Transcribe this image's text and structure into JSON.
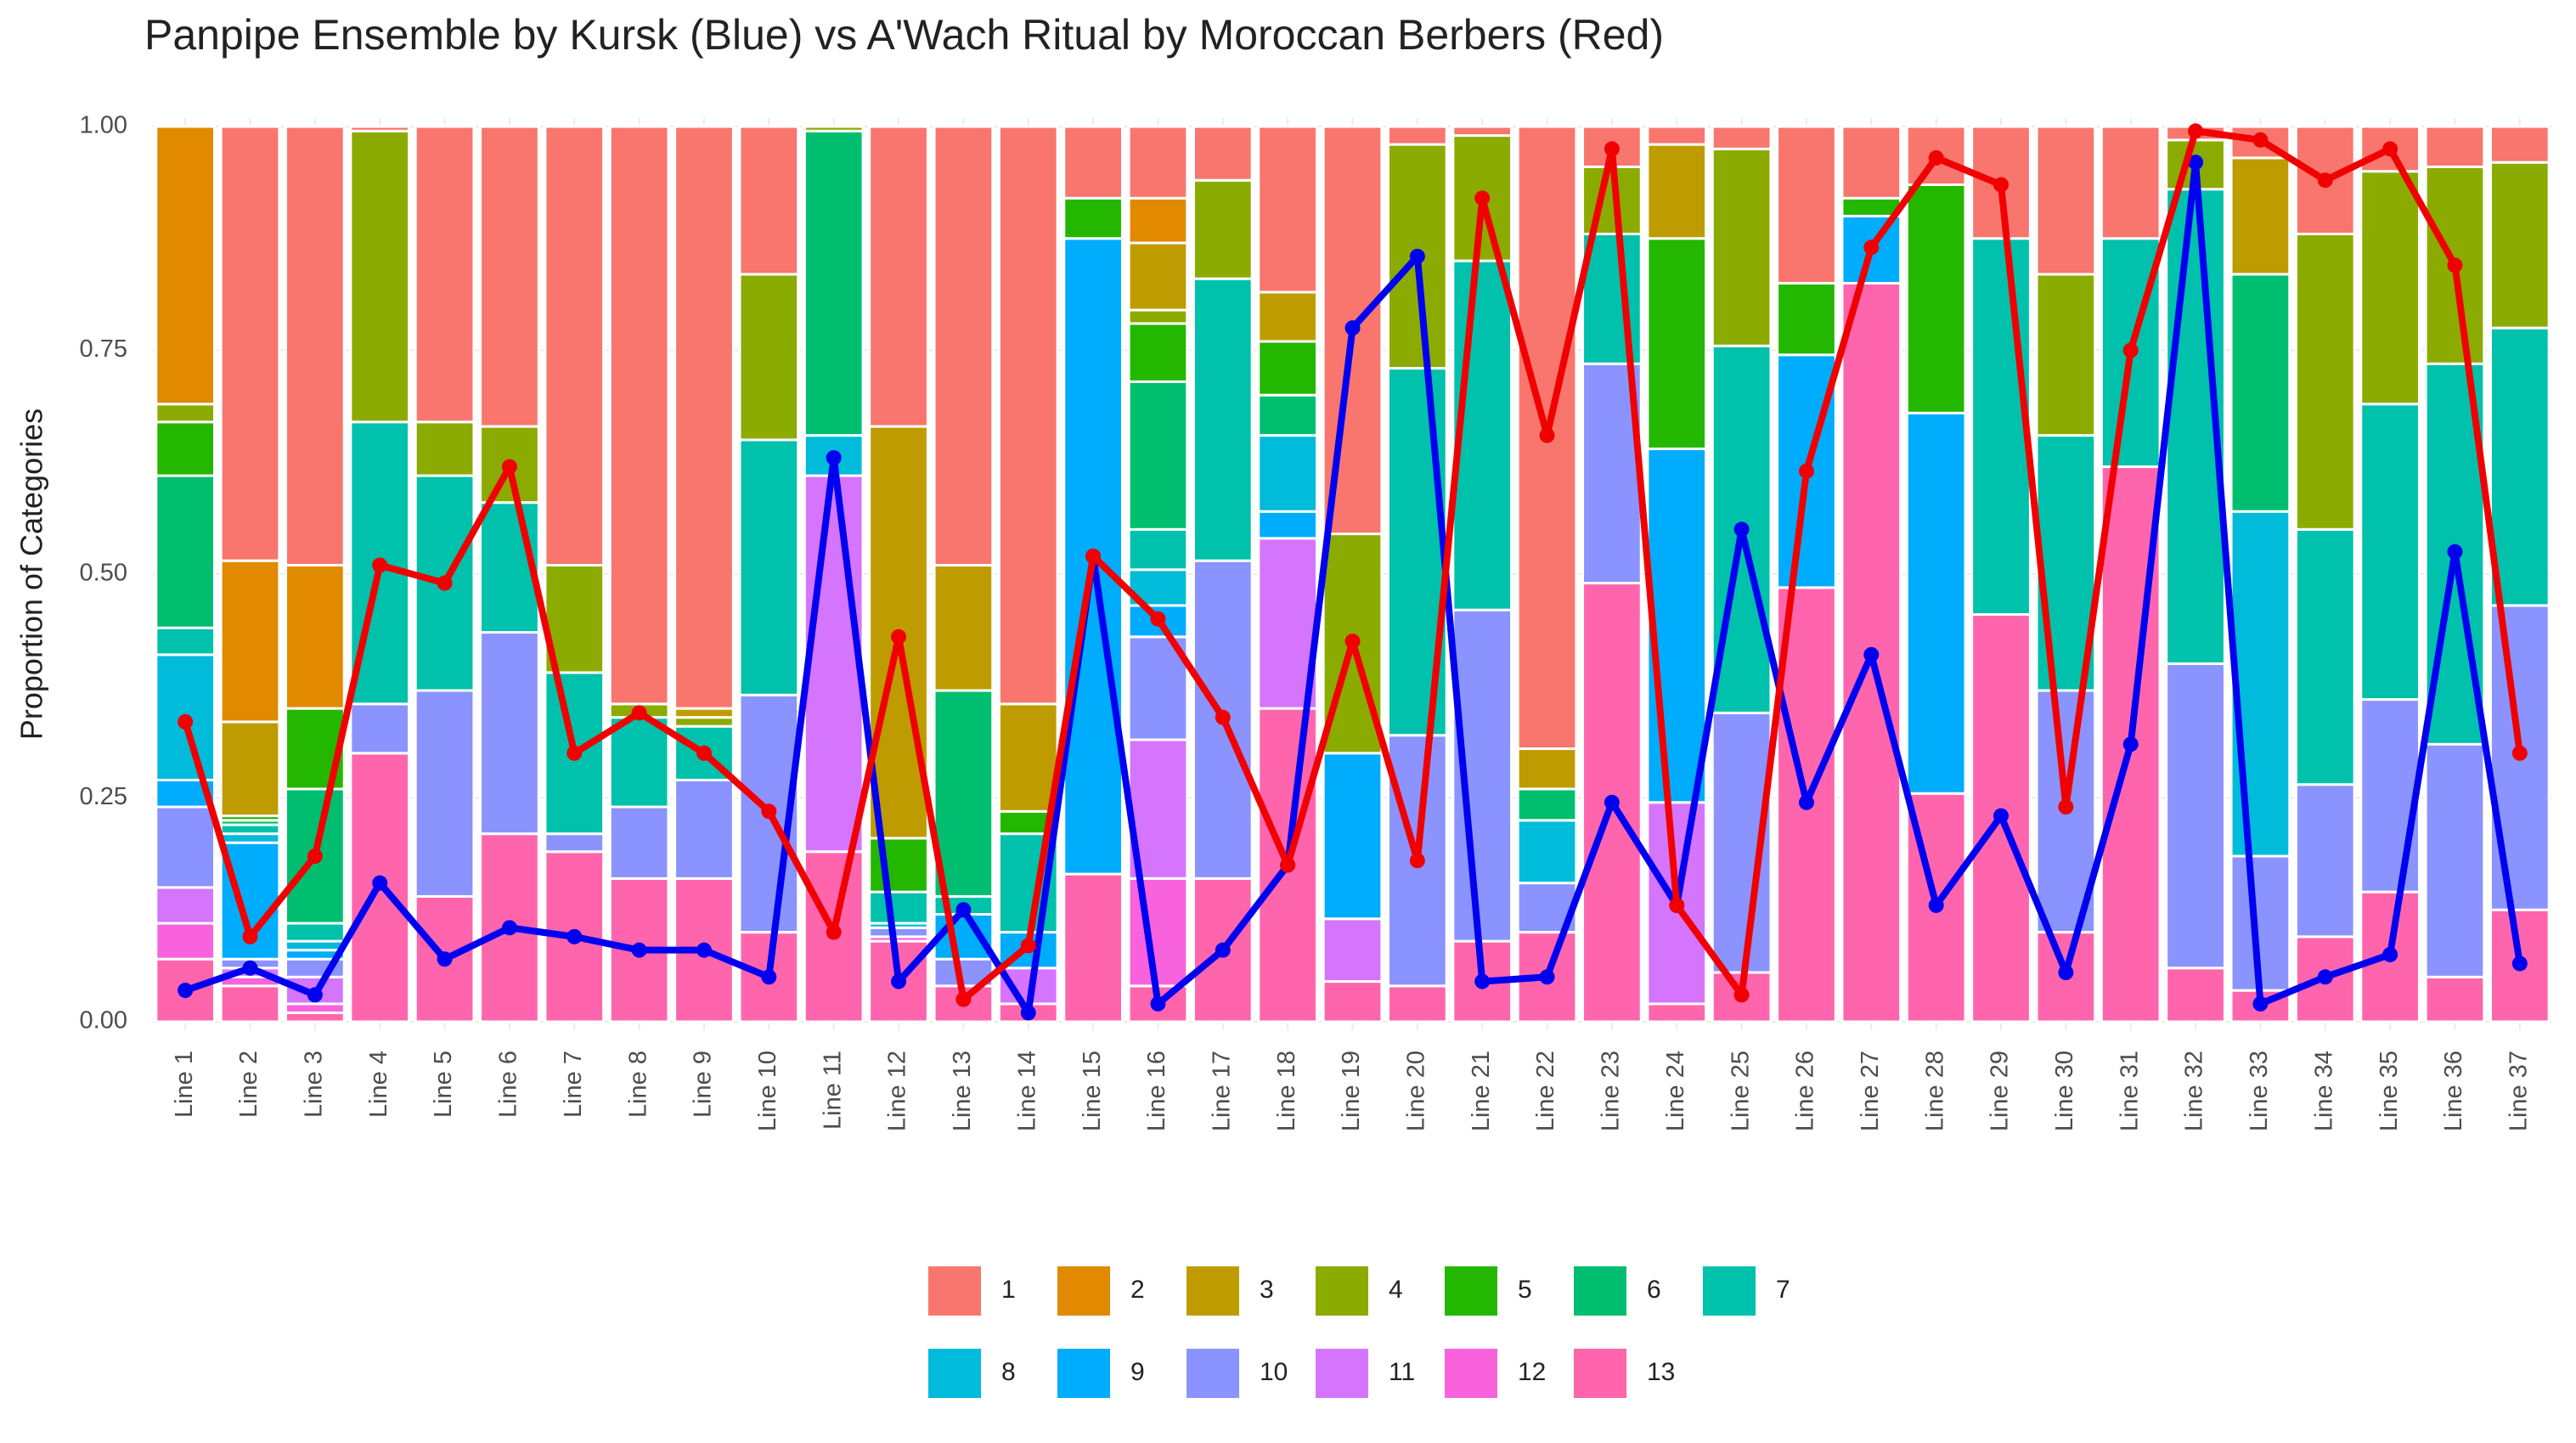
{
  "chart_data": {
    "type": "bar",
    "stacked": true,
    "title": "Panpipe Ensemble by Kursk (Blue) vs A'Wach Ritual by Moroccan Berbers (Red)",
    "y_label": "Proportion of Categories",
    "categories": [
      "Line 1",
      "Line 2",
      "Line 3",
      "Line 4",
      "Line 5",
      "Line 6",
      "Line 7",
      "Line 8",
      "Line 9",
      "Line 10",
      "Line 11",
      "Line 12",
      "Line 13",
      "Line 14",
      "Line 15",
      "Line 16",
      "Line 17",
      "Line 18",
      "Line 19",
      "Line 20",
      "Line 21",
      "Line 22",
      "Line 23",
      "Line 24",
      "Line 25",
      "Line 26",
      "Line 27",
      "Line 28",
      "Line 29",
      "Line 30",
      "Line 31",
      "Line 32",
      "Line 33",
      "Line 34",
      "Line 35",
      "Line 36",
      "Line 37"
    ],
    "series": [
      {
        "name": "1",
        "color": "#F8766D",
        "values": [
          0,
          0.485,
          0.49,
          0.005,
          0.33,
          0.335,
          0.49,
          0.645,
          0.65,
          0.165,
          0,
          0.335,
          0.49,
          0.645,
          0.08,
          0.08,
          0.06,
          0.185,
          0.455,
          0.02,
          0.01,
          0.695,
          0.045,
          0.02,
          0.025,
          0.175,
          0.08,
          0.065,
          0.125,
          0.165,
          0.125,
          0.015,
          0.035,
          0.12,
          0.05,
          0.045,
          0.04
        ]
      },
      {
        "name": "2",
        "color": "#E18A00",
        "values": [
          0.31,
          0.18,
          0.16,
          0,
          0,
          0,
          0,
          0,
          0,
          0,
          0,
          0,
          0,
          0,
          0,
          0.05,
          0,
          0,
          0,
          0,
          0,
          0,
          0,
          0,
          0,
          0,
          0,
          0,
          0,
          0,
          0,
          0,
          0,
          0,
          0,
          0,
          0
        ]
      },
      {
        "name": "3",
        "color": "#BE9C00",
        "values": [
          0,
          0.105,
          0,
          0,
          0,
          0,
          0,
          0,
          0.01,
          0,
          0,
          0.46,
          0.14,
          0.12,
          0,
          0.075,
          0,
          0.055,
          0,
          0,
          0,
          0.045,
          0,
          0.105,
          0,
          0,
          0,
          0,
          0,
          0,
          0,
          0,
          0.13,
          0,
          0,
          0,
          0
        ]
      },
      {
        "name": "4",
        "color": "#8CAB00",
        "values": [
          0.02,
          0,
          0,
          0.325,
          0.06,
          0.085,
          0.12,
          0.015,
          0.01,
          0.185,
          0.005,
          0,
          0,
          0,
          0,
          0.015,
          0.11,
          0,
          0.245,
          0.25,
          0.14,
          0,
          0.075,
          0,
          0.22,
          0,
          0,
          0,
          0,
          0.18,
          0,
          0.055,
          0,
          0.33,
          0.26,
          0.22,
          0.185
        ]
      },
      {
        "name": "5",
        "color": "#24B700",
        "values": [
          0.06,
          0.005,
          0.09,
          0,
          0,
          0,
          0,
          0,
          0,
          0,
          0,
          0.06,
          0,
          0.025,
          0.045,
          0.065,
          0,
          0.06,
          0,
          0,
          0,
          0,
          0,
          0.235,
          0,
          0.08,
          0.02,
          0.255,
          0,
          0,
          0,
          0,
          0,
          0,
          0,
          0,
          0
        ]
      },
      {
        "name": "6",
        "color": "#00BE70",
        "values": [
          0.17,
          0.005,
          0.15,
          0,
          0,
          0,
          0,
          0,
          0,
          0,
          0.34,
          0,
          0.23,
          0,
          0,
          0.165,
          0,
          0.045,
          0,
          0,
          0,
          0.035,
          0,
          0,
          0,
          0,
          0,
          0,
          0,
          0,
          0,
          0,
          0.265,
          0,
          0,
          0,
          0
        ]
      },
      {
        "name": "7",
        "color": "#00C1AB",
        "values": [
          0.03,
          0.01,
          0.02,
          0.315,
          0.24,
          0.145,
          0.18,
          0.1,
          0.06,
          0.285,
          0,
          0.035,
          0.02,
          0.11,
          0,
          0.045,
          0.315,
          0,
          0,
          0.41,
          0.39,
          0,
          0.145,
          0,
          0.41,
          0,
          0,
          0,
          0.42,
          0.285,
          0.255,
          0.53,
          0,
          0.285,
          0.33,
          0.425,
          0.31
        ]
      },
      {
        "name": "8",
        "color": "#00BBDA",
        "values": [
          0.14,
          0.01,
          0.01,
          0,
          0,
          0,
          0,
          0,
          0,
          0,
          0.045,
          0.005,
          0,
          0,
          0,
          0.04,
          0,
          0.085,
          0,
          0,
          0,
          0.07,
          0,
          0,
          0,
          0,
          0,
          0,
          0,
          0,
          0,
          0,
          0.385,
          0,
          0,
          0,
          0
        ]
      },
      {
        "name": "9",
        "color": "#00ACFC",
        "values": [
          0.03,
          0.13,
          0.01,
          0,
          0,
          0,
          0,
          0,
          0,
          0,
          0,
          0,
          0.05,
          0.04,
          0.71,
          0.035,
          0,
          0.03,
          0.185,
          0,
          0,
          0,
          0,
          0.395,
          0,
          0.26,
          0.075,
          0.425,
          0,
          0,
          0,
          0,
          0,
          0,
          0,
          0,
          0
        ]
      },
      {
        "name": "10",
        "color": "#8B93FF",
        "values": [
          0.09,
          0.01,
          0.02,
          0.055,
          0.23,
          0.225,
          0.02,
          0.08,
          0.11,
          0.265,
          0,
          0.01,
          0.03,
          0,
          0,
          0.115,
          0.355,
          0,
          0,
          0.28,
          0.37,
          0.055,
          0.245,
          0,
          0.29,
          0,
          0,
          0,
          0,
          0.27,
          0,
          0.34,
          0.15,
          0.17,
          0.215,
          0.26,
          0.34
        ]
      },
      {
        "name": "11",
        "color": "#D575FE",
        "values": [
          0.04,
          0.01,
          0.03,
          0,
          0,
          0,
          0,
          0,
          0,
          0,
          0.42,
          0,
          0,
          0.04,
          0,
          0.155,
          0,
          0.19,
          0.07,
          0,
          0,
          0,
          0,
          0.225,
          0,
          0,
          0,
          0,
          0,
          0,
          0,
          0,
          0,
          0,
          0,
          0,
          0
        ]
      },
      {
        "name": "12",
        "color": "#F962DD",
        "values": [
          0.04,
          0.01,
          0.01,
          0,
          0,
          0,
          0,
          0,
          0,
          0,
          0,
          0.005,
          0,
          0,
          0,
          0.12,
          0,
          0,
          0,
          0,
          0,
          0,
          0,
          0,
          0,
          0,
          0,
          0,
          0,
          0,
          0,
          0,
          0,
          0,
          0,
          0,
          0
        ]
      },
      {
        "name": "13",
        "color": "#FF65AC",
        "values": [
          0.07,
          0.04,
          0.01,
          0.3,
          0.14,
          0.21,
          0.19,
          0.16,
          0.16,
          0.1,
          0.19,
          0.09,
          0.04,
          0.02,
          0.165,
          0.04,
          0.16,
          0.35,
          0.045,
          0.04,
          0.09,
          0.1,
          0.49,
          0.02,
          0.055,
          0.485,
          0.825,
          0.255,
          0.455,
          0.1,
          0.62,
          0.06,
          0.035,
          0.095,
          0.145,
          0.05,
          0.125
        ]
      }
    ],
    "lines": [
      {
        "color": "#0000F0",
        "values": [
          0.035,
          0.06,
          0.03,
          0.155,
          0.07,
          0.105,
          0.095,
          0.08,
          0.08,
          0.05,
          0.63,
          0.045,
          0.125,
          0.01,
          0.52,
          0.02,
          0.08,
          0.175,
          0.775,
          0.855,
          0.045,
          0.05,
          0.245,
          0.13,
          0.55,
          0.245,
          0.41,
          0.13,
          0.23,
          0.055,
          0.31,
          0.96,
          0.02,
          0.05,
          0.075,
          0.525,
          0.065
        ]
      },
      {
        "color": "#F00000",
        "values": [
          0.335,
          0.095,
          0.185,
          0.51,
          0.49,
          0.62,
          0.3,
          0.345,
          0.3,
          0.235,
          0.1,
          0.43,
          0.025,
          0.085,
          0.52,
          0.45,
          0.34,
          0.175,
          0.425,
          0.18,
          0.92,
          0.655,
          0.975,
          0.13,
          0.03,
          0.615,
          0.865,
          0.965,
          0.935,
          0.24,
          0.75,
          0.995,
          0.985,
          0.94,
          0.975,
          0.845,
          0.3
        ]
      }
    ],
    "ylim": [
      0,
      1
    ],
    "yticks": [
      {
        "value": 0,
        "label": "0.00"
      },
      {
        "value": 0.25,
        "label": "0.25"
      },
      {
        "value": 0.5,
        "label": "0.50"
      },
      {
        "value": 0.75,
        "label": "0.75"
      },
      {
        "value": 1,
        "label": "1.00"
      }
    ],
    "grid": true,
    "legend": "bottom"
  }
}
